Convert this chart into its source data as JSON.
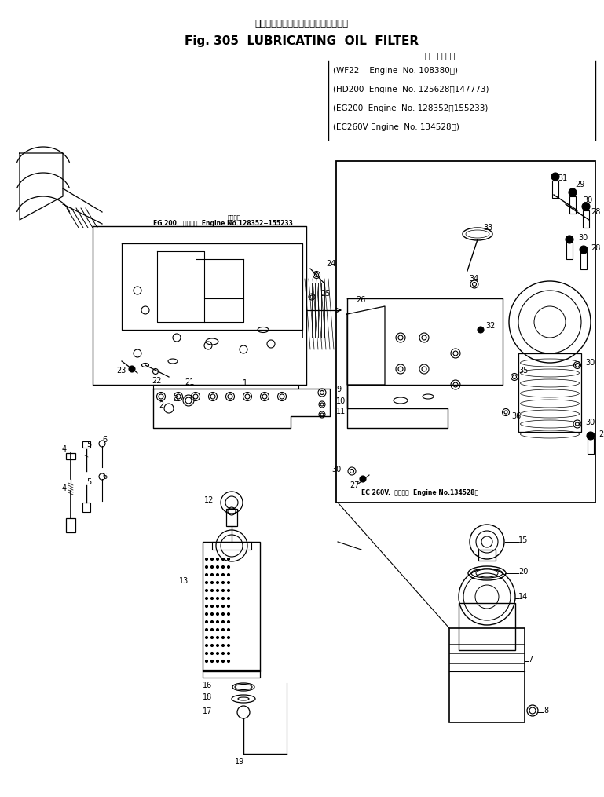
{
  "title_japanese": "ルーブリケーティングオイルフィルタ",
  "title_english": "Fig. 305  LUBRICATING  OIL  FILTER",
  "applicable_header": "適 用 号 簺",
  "applicable_lines": [
    "(WF22    Engine  No. 108380～)",
    "(HD200  Engine  No. 125628～147773)",
    "(EG200  Engine  No. 128352～155233)",
    "(EC260V Engine  No. 134528～)"
  ],
  "label_eg200": "EG 200.  適用号簺  Engine No.128352−155233",
  "label_ec260v": "EC 260V.  Engine No.134528～",
  "label_ec260v_bottom": "EC 260V.  適用号簺  Engine No.134528～",
  "bg_color": "#ffffff",
  "fg_color": "#000000",
  "figsize": [
    7.69,
    10.15
  ],
  "dpi": 100
}
